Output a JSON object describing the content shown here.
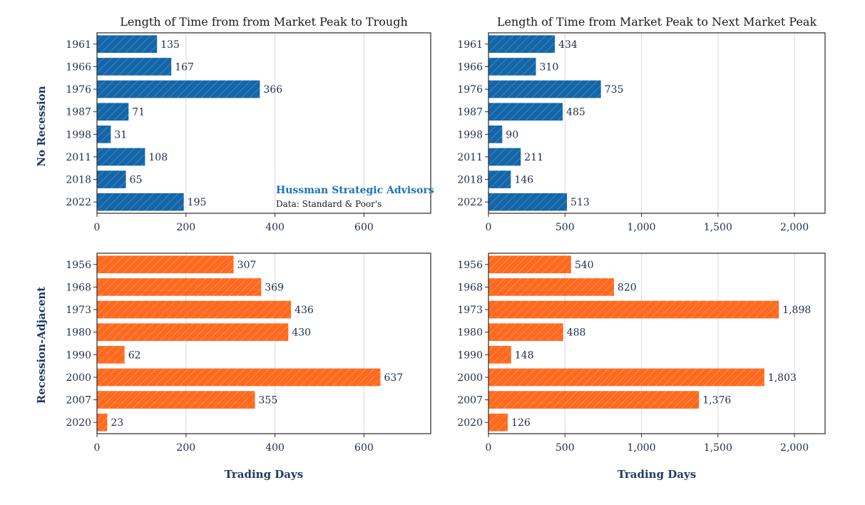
{
  "colors": {
    "no_recession": "#1466a9",
    "recession": "#ff6a1f",
    "text": "#1f2d4a",
    "grid": "#d9d9d9",
    "frame": "#2a2a2a"
  },
  "watermark": {
    "brand": "Hussman Strategic Advisors",
    "source": "Data: Standard & Poor's"
  },
  "row_labels": [
    "No Recession",
    "Recession-Adjacent"
  ],
  "chart_data": [
    {
      "type": "bar",
      "orientation": "horizontal",
      "title": "Length of Time from from Market Peak to Trough",
      "ylabel": "No Recession",
      "xlabel": "",
      "categories": [
        "1961",
        "1966",
        "1976",
        "1987",
        "1998",
        "2011",
        "2018",
        "2022"
      ],
      "values": [
        135,
        167,
        366,
        71,
        31,
        108,
        65,
        195
      ],
      "value_labels": [
        "135",
        "167",
        "366",
        "71",
        "31",
        "108",
        "65",
        "195"
      ],
      "xlim": [
        0,
        750
      ],
      "xticks": [
        0,
        200,
        400,
        600
      ],
      "xtick_labels": [
        "0",
        "200",
        "400",
        "600"
      ],
      "grid": true,
      "color": "#1466a9"
    },
    {
      "type": "bar",
      "orientation": "horizontal",
      "title": "Length of Time from Market Peak to Next Market Peak",
      "xlabel": "",
      "categories": [
        "1961",
        "1966",
        "1976",
        "1987",
        "1998",
        "2011",
        "2018",
        "2022"
      ],
      "values": [
        434,
        310,
        735,
        485,
        90,
        211,
        146,
        513
      ],
      "value_labels": [
        "434",
        "310",
        "735",
        "485",
        "90",
        "211",
        "146",
        "513"
      ],
      "xlim": [
        0,
        2200
      ],
      "xticks": [
        0,
        500,
        1000,
        1500,
        2000
      ],
      "xtick_labels": [
        "0",
        "500",
        "1,000",
        "1,500",
        "2,000"
      ],
      "grid": true,
      "color": "#1466a9"
    },
    {
      "type": "bar",
      "orientation": "horizontal",
      "title": "",
      "ylabel": "Recession-Adjacent",
      "xlabel": "Trading Days",
      "categories": [
        "1956",
        "1968",
        "1973",
        "1980",
        "1990",
        "2000",
        "2007",
        "2020"
      ],
      "values": [
        307,
        369,
        436,
        430,
        62,
        637,
        355,
        23
      ],
      "value_labels": [
        "307",
        "369",
        "436",
        "430",
        "62",
        "637",
        "355",
        "23"
      ],
      "xlim": [
        0,
        750
      ],
      "xticks": [
        0,
        200,
        400,
        600
      ],
      "xtick_labels": [
        "0",
        "200",
        "400",
        "600"
      ],
      "grid": true,
      "color": "#ff6a1f"
    },
    {
      "type": "bar",
      "orientation": "horizontal",
      "title": "",
      "xlabel": "Trading Days",
      "categories": [
        "1956",
        "1968",
        "1973",
        "1980",
        "1990",
        "2000",
        "2007",
        "2020"
      ],
      "values": [
        540,
        820,
        1898,
        488,
        148,
        1803,
        1376,
        126
      ],
      "value_labels": [
        "540",
        "820",
        "1,898",
        "488",
        "148",
        "1,803",
        "1,376",
        "126"
      ],
      "xlim": [
        0,
        2200
      ],
      "xticks": [
        0,
        500,
        1000,
        1500,
        2000
      ],
      "xtick_labels": [
        "0",
        "500",
        "1,000",
        "1,500",
        "2,000"
      ],
      "grid": true,
      "color": "#ff6a1f"
    }
  ]
}
